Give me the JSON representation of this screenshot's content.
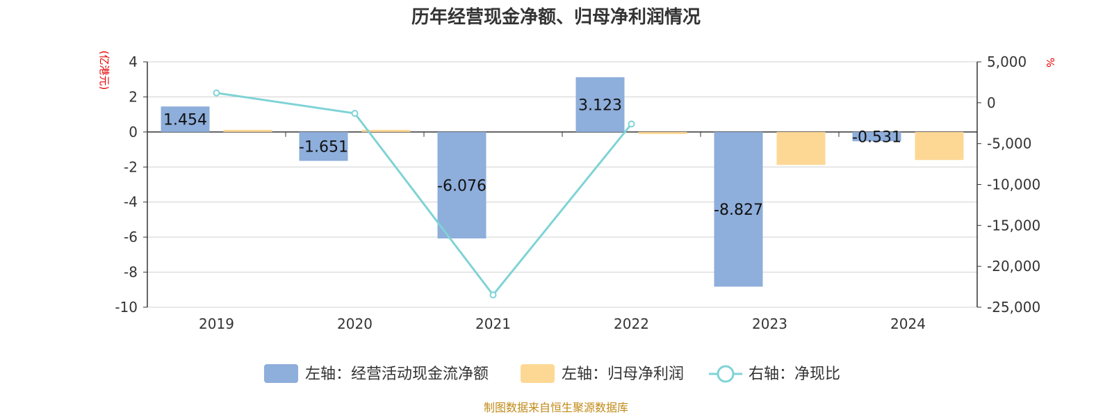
{
  "chart_data": {
    "type": "bar",
    "title": "历年经营现金净额、归母净利润情况",
    "categories": [
      "2019",
      "2020",
      "2021",
      "2022",
      "2023",
      "2024"
    ],
    "series": [
      {
        "name": "左轴：经营活动现金流净额",
        "axis": "left",
        "type": "bar",
        "color": "#8eaedb",
        "values": [
          1.454,
          -1.651,
          -6.076,
          3.123,
          -8.827,
          -0.531
        ],
        "labels": [
          "1.454",
          "-1.651",
          "-6.076",
          "3.123",
          "-8.827",
          "-0.531"
        ]
      },
      {
        "name": "左轴：归母净利润",
        "axis": "left",
        "type": "bar",
        "color": "#fdd895",
        "values": [
          0.12,
          0.12,
          0.0,
          -0.12,
          -1.88,
          -1.6
        ]
      },
      {
        "name": "右轴：净现比",
        "axis": "right",
        "type": "line",
        "color": "#7fd3d6",
        "values": [
          1200,
          -1300,
          -23500,
          -2600,
          null,
          null
        ]
      }
    ],
    "left_axis": {
      "unit": "(亿港元)",
      "ylim": [
        -10,
        4
      ],
      "ticks": [
        "4",
        "2",
        "0",
        "-2",
        "-4",
        "-6",
        "-8",
        "-10"
      ],
      "tick_values": [
        4,
        2,
        0,
        -2,
        -4,
        -6,
        -8,
        -10
      ]
    },
    "right_axis": {
      "unit": "%",
      "ylim": [
        -25000,
        5000
      ],
      "ticks": [
        "5,000",
        "0",
        "-5,000",
        "-10,000",
        "-15,000",
        "-20,000",
        "-25,000"
      ],
      "tick_values": [
        5000,
        0,
        -5000,
        -10000,
        -15000,
        -20000,
        -25000
      ]
    },
    "grid": true,
    "legend_position": "bottom"
  },
  "source": "制图数据来自恒生聚源数据库"
}
